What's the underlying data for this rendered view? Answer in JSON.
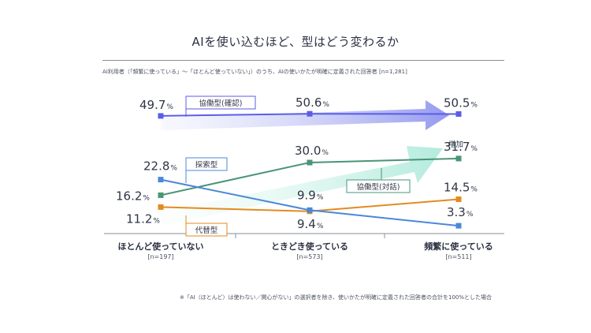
{
  "title": "AIを使い込むほど、型はどう変わるか",
  "subtitle": "AI利用者（「頻繁に使っている」〜「ほとんど使っていない」）のうち、AIの使いかたが明確に定義された回答者 [n=1,281]",
  "footnote": "※「AI（ほとんど）は使わない／関心がない」の選択者を除き、使いかたが明確に定義された回答者の合計を100%とした場合",
  "increase_label": "増加",
  "unit": "%",
  "colors": {
    "collab_confirm": "#5a5ee6",
    "collab_dialogue": "#4a9478",
    "explore": "#4a88d8",
    "substitute": "#e58a1f"
  },
  "chart_data": {
    "type": "line",
    "categories": [
      "ほとんど使っていない",
      "ときどき使っている",
      "頻繁に使っている"
    ],
    "category_n": [
      "[n=197]",
      "[n=573]",
      "[n=511]"
    ],
    "ylim": [
      0,
      60
    ],
    "series": [
      {
        "key": "collab_confirm",
        "name": "協働型(確認)",
        "values": [
          49.7,
          50.6,
          50.5
        ],
        "labels": [
          "49.7",
          "50.6",
          "50.5"
        ]
      },
      {
        "key": "collab_dialogue",
        "name": "協働型(対話)",
        "values": [
          16.2,
          30.0,
          31.7
        ],
        "labels": [
          "16.2",
          "30.0",
          "31.7"
        ]
      },
      {
        "key": "explore",
        "name": "探索型",
        "values": [
          22.8,
          9.9,
          3.3
        ],
        "labels": [
          "22.8",
          "9.9",
          "3.3"
        ]
      },
      {
        "key": "substitute",
        "name": "代替型",
        "values": [
          11.2,
          9.4,
          14.5
        ],
        "labels": [
          "11.2",
          "9.4",
          "14.5"
        ]
      }
    ]
  }
}
